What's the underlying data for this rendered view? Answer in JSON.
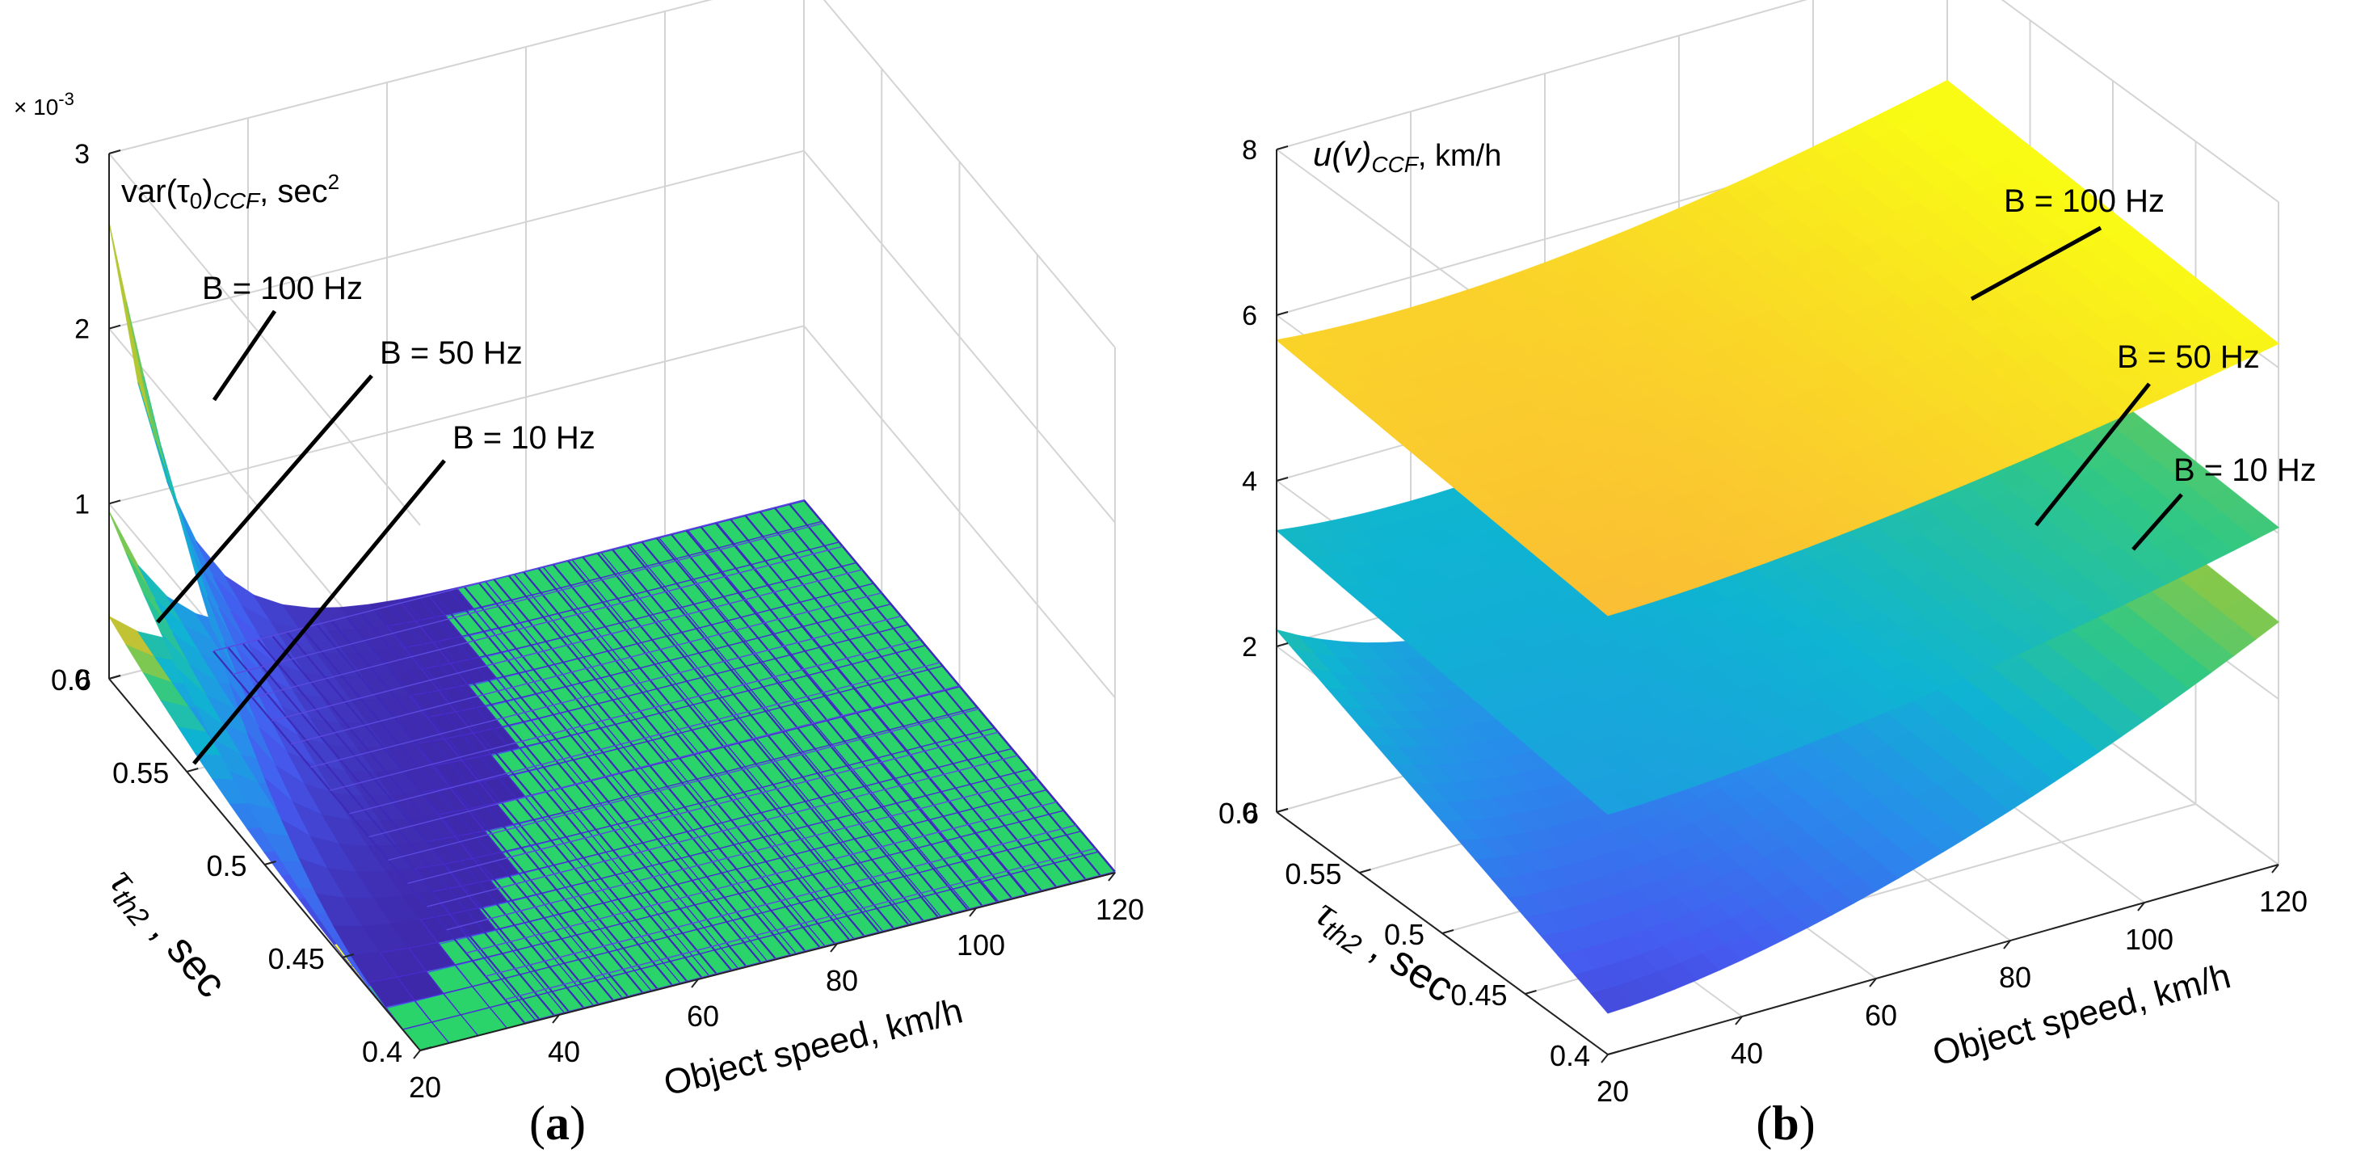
{
  "chart_data": [
    {
      "panel": "a",
      "panel_label": "(a)",
      "type": "surface3d",
      "title": "var(τ0)CCF, sec²",
      "zlabel_main": "var(τ",
      "zlabel_sub1": "0",
      "zlabel_mid": ")",
      "zlabel_sub2": "CCF",
      "zlabel_unit": ", sec",
      "zlabel_sup": "2",
      "z_exponent_base": "× 10",
      "z_exponent_power": "-3",
      "xlabel": "Object speed, km/h",
      "ylabel_main": "τ",
      "ylabel_sub": "th2",
      "ylabel_unit": " , sec",
      "x_ticks": [
        "20",
        "40",
        "60",
        "80",
        "100",
        "120"
      ],
      "y_ticks": [
        "0.4",
        "0.45",
        "0.5",
        "0.55",
        "0.6"
      ],
      "z_ticks": [
        "0",
        "1",
        "2",
        "3"
      ],
      "xlim": [
        20,
        120
      ],
      "ylim": [
        0.4,
        0.6
      ],
      "zlim": [
        0,
        3
      ],
      "z_scale": 0.001,
      "grid": true,
      "series": [
        {
          "name": "B = 100 Hz",
          "z_at_speed_20": [
            0.05,
            0.2,
            0.6,
            1.3,
            2.6
          ],
          "z_at_high_speed": 0.0
        },
        {
          "name": "B = 50 Hz",
          "z_at_speed_20": [
            0.02,
            0.08,
            0.25,
            0.5,
            0.95
          ],
          "z_at_high_speed": 0.0
        },
        {
          "name": "B = 10 Hz",
          "z_at_speed_20": [
            0.0,
            0.03,
            0.08,
            0.18,
            0.35
          ],
          "z_at_high_speed": 0.0
        }
      ]
    },
    {
      "panel": "b",
      "panel_label": "(b)",
      "type": "surface3d",
      "title": "u(v)CCF, km/h",
      "zlabel_main": "u(v)",
      "zlabel_sub2": "CCF",
      "zlabel_unit": ", km/h",
      "xlabel": "Object speed, km/h",
      "ylabel_main": "τ",
      "ylabel_sub": "th2",
      "ylabel_unit": " , sec",
      "x_ticks": [
        "20",
        "40",
        "60",
        "80",
        "100",
        "120"
      ],
      "y_ticks": [
        "0.4",
        "0.45",
        "0.5",
        "0.55",
        "0.6"
      ],
      "z_ticks": [
        "0",
        "2",
        "4",
        "6",
        "8"
      ],
      "xlim": [
        20,
        120
      ],
      "ylim": [
        0.4,
        0.6
      ],
      "zlim": [
        0,
        8
      ],
      "grid": true,
      "series": [
        {
          "name": "B = 100 Hz",
          "z_corner_20_06": 5.7,
          "z_corner_120_06": 6.4,
          "z_min": 5.3,
          "z_corner_120_04": 6.2
        },
        {
          "name": "B = 50 Hz",
          "z_corner_20_06": 3.4,
          "z_corner_120_06": 4.2,
          "z_min": 2.9,
          "z_corner_120_04": 4.1
        },
        {
          "name": "B = 10 Hz",
          "z_corner_20_06": 2.2,
          "z_corner_120_06": 3.2,
          "z_min": 0.5,
          "z_corner_120_04": 3.3
        }
      ]
    }
  ]
}
